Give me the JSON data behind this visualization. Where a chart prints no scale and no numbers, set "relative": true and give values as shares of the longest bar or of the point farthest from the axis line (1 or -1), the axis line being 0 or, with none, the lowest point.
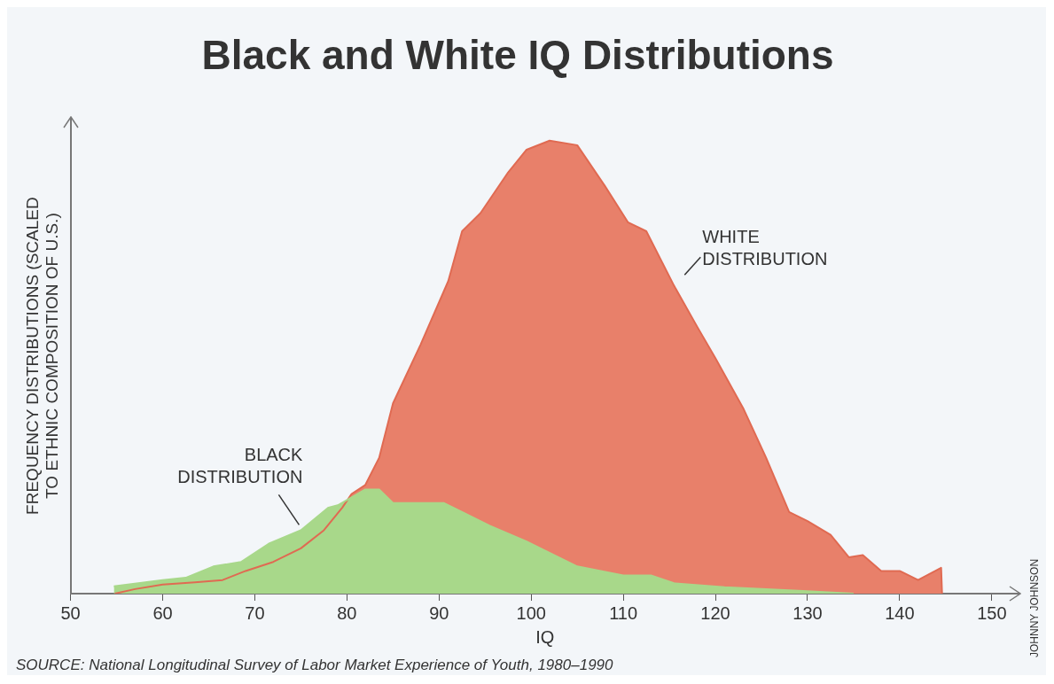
{
  "chart_data": {
    "type": "area",
    "title": "Black and White IQ Distributions",
    "xlabel": "IQ",
    "ylabel": "FREQUENCY DISTRIBUTIONS (SCALED TO ETHNIC COMPOSITION OF U.S.)",
    "relative": true,
    "xlim": [
      50,
      153
    ],
    "xticks": [
      50,
      60,
      70,
      80,
      90,
      100,
      110,
      120,
      130,
      140,
      150
    ],
    "grid": false,
    "legend": false,
    "series": [
      {
        "name": "WHITE DISTRIBUTION",
        "color": "#e8806a",
        "x": [
          54.8,
          57,
          60,
          63.5,
          66.5,
          69,
          72,
          75,
          77.5,
          79.5,
          80.5,
          82,
          83.5,
          85,
          88,
          91,
          92.5,
          94.5,
          97.5,
          99.5,
          102,
          105,
          108,
          110.5,
          112.5,
          115.5,
          118,
          120,
          123,
          125.5,
          128,
          130,
          132.5,
          134.5,
          136,
          138,
          140,
          142,
          144.5,
          144.6
        ],
        "values": [
          0,
          0.01,
          0.02,
          0.025,
          0.03,
          0.05,
          0.07,
          0.1,
          0.14,
          0.19,
          0.22,
          0.24,
          0.3,
          0.42,
          0.55,
          0.69,
          0.8,
          0.84,
          0.93,
          0.98,
          1,
          0.99,
          0.9,
          0.82,
          0.8,
          0.68,
          0.59,
          0.52,
          0.41,
          0.3,
          0.18,
          0.16,
          0.13,
          0.08,
          0.085,
          0.05,
          0.05,
          0.03,
          0.057,
          0
        ]
      },
      {
        "name": "BLACK DISTRIBUTION",
        "color": "#a8d88a",
        "x": [
          54.7,
          60,
          62.5,
          65.5,
          68.5,
          71.5,
          75,
          78,
          79,
          82,
          83.5,
          85,
          88,
          90.5,
          92.5,
          95.5,
          99.5,
          101,
          105,
          110,
          113,
          115.5,
          121,
          129.5,
          135
        ],
        "values": [
          0.016,
          0.03,
          0.035,
          0.06,
          0.07,
          0.11,
          0.14,
          0.19,
          0.195,
          0.23,
          0.23,
          0.2,
          0.2,
          0.2,
          0.18,
          0.15,
          0.115,
          0.1,
          0.06,
          0.04,
          0.04,
          0.023,
          0.014,
          0.006,
          0
        ]
      }
    ],
    "annotations": [
      "SOURCE: National Longitudinal Survey of Labor Market Experience of Youth, 1980–1990",
      "JOHNNY JOHNSON"
    ]
  }
}
